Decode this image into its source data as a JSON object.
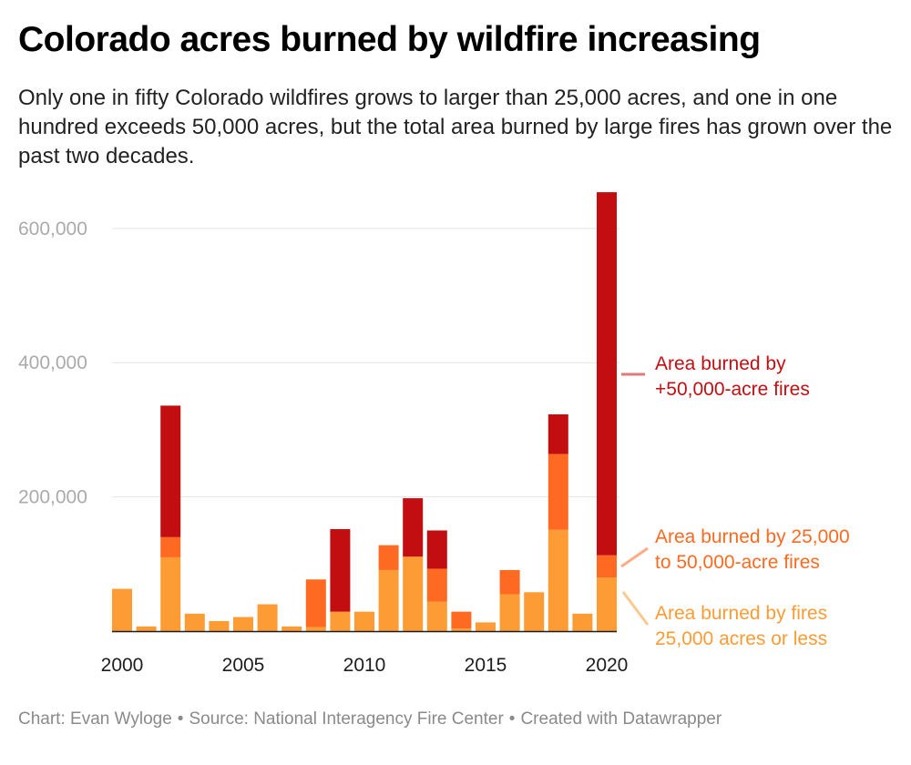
{
  "title": "Colorado acres burned by wildfire increasing",
  "subtitle": "Only one in fifty Colorado wildfires grows to larger than 25,000 acres, and one in one hundred exceeds 50,000 acres, but the total area burned by large fires has grown over the past two decades.",
  "footer": {
    "chart_by": "Chart: Evan Wyloge",
    "source": "Source: National Interagency Fire Center",
    "created": "Created with Datawrapper",
    "separator": "•"
  },
  "colors": {
    "small": "#fd9c35",
    "medium": "#fe6a21",
    "large": "#c20e10",
    "grid": "#e3e3e3",
    "tick_text": "#aaaaaa",
    "axis": "#1d1d1d"
  },
  "chart_data": {
    "type": "bar",
    "stacked": true,
    "title": "Colorado acres burned by wildfire increasing",
    "xlabel": "",
    "ylabel": "",
    "ylim": [
      0,
      660000
    ],
    "y_ticks": [
      200000,
      400000,
      600000
    ],
    "y_tick_labels": [
      "200,000",
      "400,000",
      "600,000"
    ],
    "x_tick_labels": [
      {
        "year": 2000,
        "label": "2000"
      },
      {
        "year": 2005,
        "label": "2005"
      },
      {
        "year": 2010,
        "label": "2010"
      },
      {
        "year": 2015,
        "label": "2015"
      },
      {
        "year": 2020,
        "label": "2020"
      }
    ],
    "categories": [
      2000,
      2001,
      2002,
      2003,
      2004,
      2005,
      2006,
      2007,
      2008,
      2009,
      2010,
      2011,
      2012,
      2013,
      2014,
      2015,
      2016,
      2017,
      2018,
      2019,
      2020
    ],
    "series": [
      {
        "key": "small",
        "name": "Area burned by fires 25,000 acres or less",
        "label_lines": [
          "Area burned by fires",
          "25,000 acres or less"
        ],
        "values": [
          63000,
          7000,
          110000,
          26000,
          15000,
          21000,
          40000,
          7000,
          6000,
          29000,
          29000,
          91000,
          111000,
          44000,
          4000,
          13000,
          55000,
          58000,
          151000,
          26000,
          80000
        ]
      },
      {
        "key": "medium",
        "name": "Area burned by 25,000 to 50,000-acre fires",
        "label_lines": [
          "Area burned by 25,000",
          "to 50,000-acre fires"
        ],
        "values": [
          0,
          0,
          30000,
          0,
          0,
          0,
          0,
          0,
          71000,
          0,
          0,
          37000,
          0,
          49000,
          25000,
          0,
          36000,
          0,
          113000,
          0,
          33000
        ]
      },
      {
        "key": "large",
        "name": "Area burned by +50,000-acre fires",
        "label_lines": [
          "Area burned by",
          "+50,000-acre fires"
        ],
        "values": [
          0,
          0,
          196000,
          0,
          0,
          0,
          0,
          0,
          0,
          123000,
          0,
          0,
          87000,
          57000,
          0,
          0,
          0,
          0,
          59000,
          0,
          541000
        ]
      }
    ],
    "legend": "direct labels at right"
  }
}
